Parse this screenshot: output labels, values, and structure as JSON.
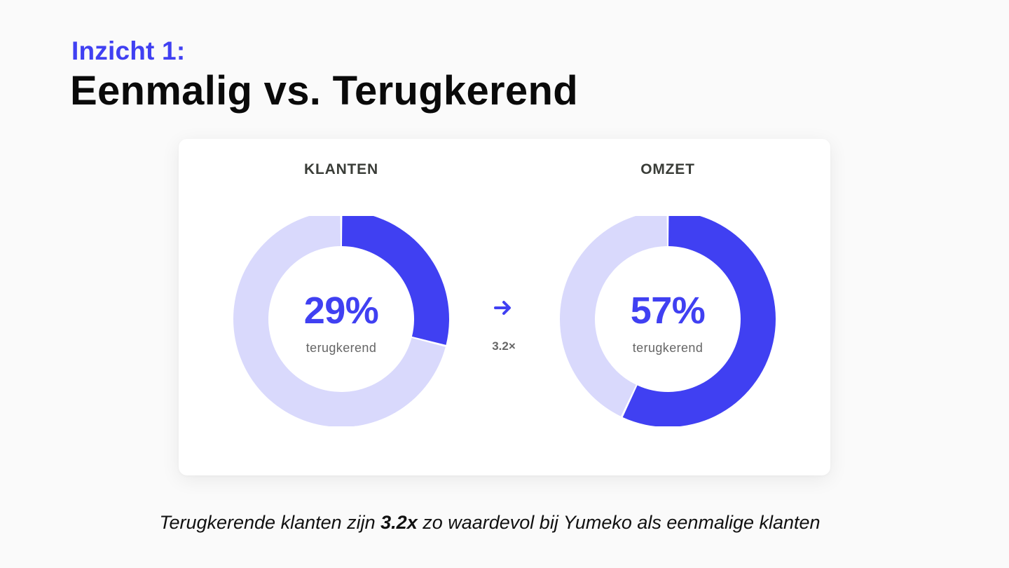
{
  "header": {
    "eyebrow": "Inzicht 1:",
    "title": "Eenmalig vs. Terugkerend"
  },
  "chart_data": [
    {
      "type": "pie",
      "variant": "donut",
      "title": "KLANTEN",
      "center_value": "29%",
      "center_label": "terugkerend",
      "slices": [
        {
          "label": "terugkerend",
          "value": 29,
          "color": "#4040f2"
        },
        {
          "label": "eenmalig",
          "value": 71,
          "color": "#d9d9fc"
        }
      ]
    },
    {
      "type": "pie",
      "variant": "donut",
      "title": "OMZET",
      "center_value": "57%",
      "center_label": "terugkerend",
      "slices": [
        {
          "label": "terugkerend",
          "value": 57,
          "color": "#4040f2"
        },
        {
          "label": "eenmalig",
          "value": 43,
          "color": "#d9d9fc"
        }
      ]
    }
  ],
  "comparison": {
    "icon": "arrow-right-icon",
    "multiplier": "3.2×"
  },
  "footer": {
    "before": "Terugkerende klanten zijn ",
    "highlight": "3.2x",
    "after": " zo waardevol bij Yumeko als eenmalige klanten"
  },
  "colors": {
    "accent": "#4040f2",
    "accent_light": "#d9d9fc",
    "background": "#fafafa",
    "card": "#ffffff"
  }
}
